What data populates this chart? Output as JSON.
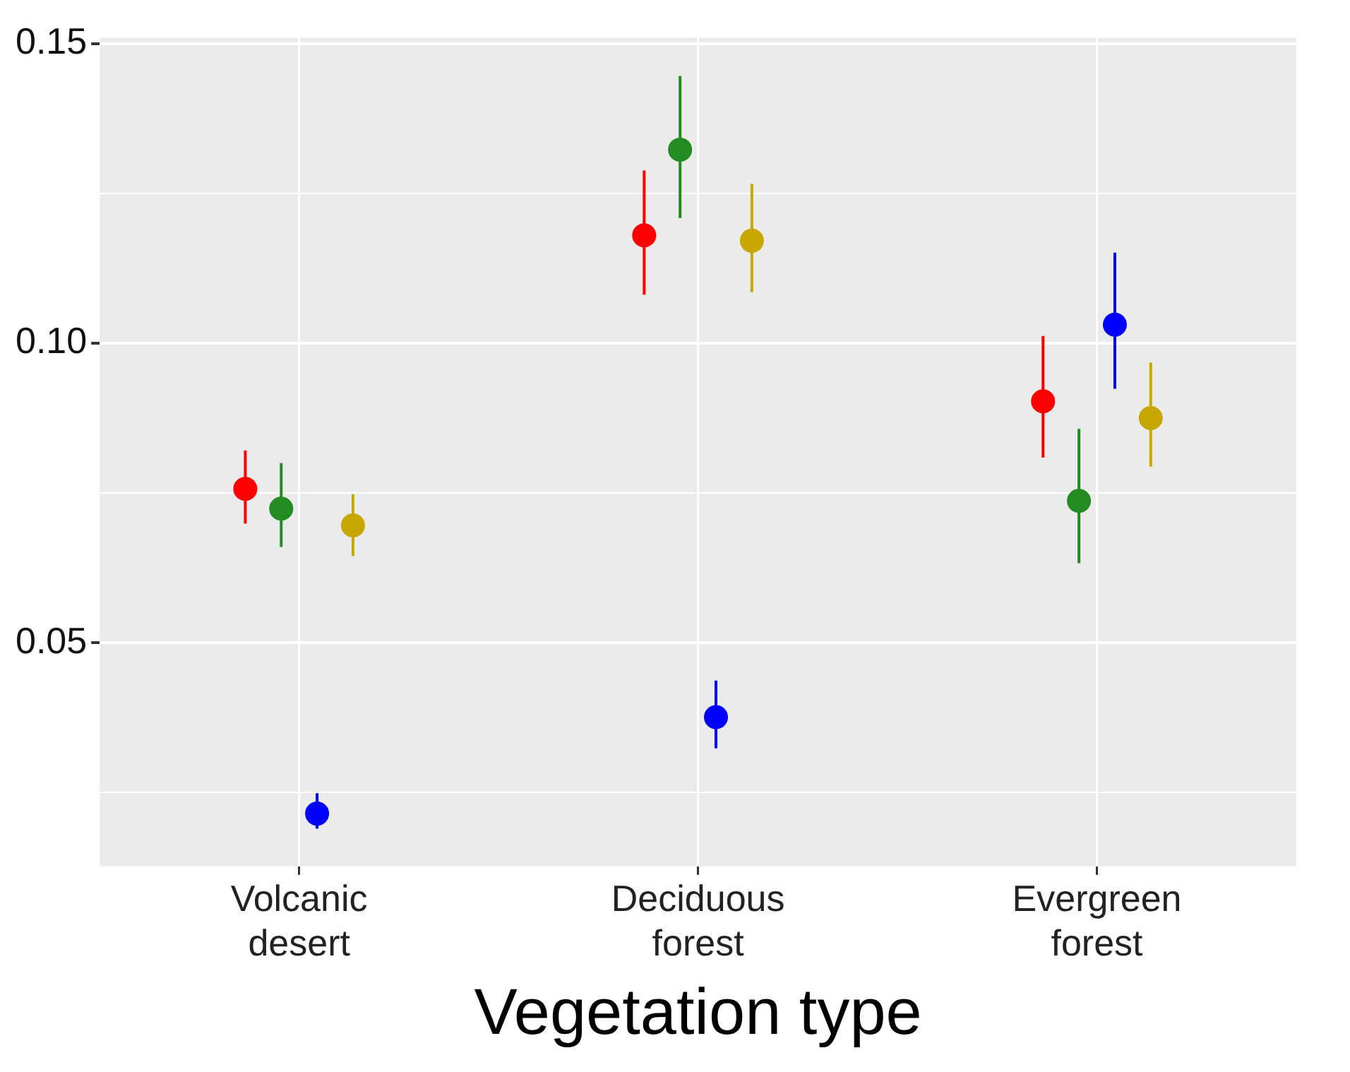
{
  "chart_data": {
    "type": "scatter",
    "xlabel": "Vegetation type",
    "categories": [
      "Volcanic desert",
      "Deciduous forest",
      "Evergreen forest"
    ],
    "series": [
      {
        "type": "scatter",
        "color": "#ff0000",
        "values": [
          0.0757,
          0.118,
          0.0903
        ],
        "errors": [
          [
            0.0699,
            0.0821
          ],
          [
            0.1081,
            0.1288
          ],
          [
            0.0809,
            0.1012
          ]
        ]
      },
      {
        "type": "scatter",
        "color": "#228b22",
        "values": [
          0.0724,
          0.1323,
          0.0737
        ],
        "errors": [
          [
            0.066,
            0.08
          ],
          [
            0.1209,
            0.1446
          ],
          [
            0.0633,
            0.0857
          ]
        ]
      },
      {
        "type": "scatter",
        "color": "#0000ff",
        "values": [
          0.0215,
          0.0376,
          0.1031
        ],
        "errors": [
          [
            0.019,
            0.0249
          ],
          [
            0.0324,
            0.0437
          ],
          [
            0.0924,
            0.1151
          ]
        ]
      },
      {
        "type": "scatter",
        "color": "#c8a800",
        "values": [
          0.0696,
          0.1171,
          0.0875
        ],
        "errors": [
          [
            0.0645,
            0.0748
          ],
          [
            0.1085,
            0.1266
          ],
          [
            0.0794,
            0.0968
          ]
        ]
      }
    ],
    "ylim": [
      0.0127,
      0.151
    ],
    "yticks": [
      {
        "value": 0.025,
        "label": null
      },
      0.05,
      {
        "value": 0.075,
        "label": null
      },
      "0.10",
      {
        "value": 0.125,
        "label": null
      },
      0.15
    ],
    "grid": true,
    "legend": false,
    "marker": "circle"
  }
}
